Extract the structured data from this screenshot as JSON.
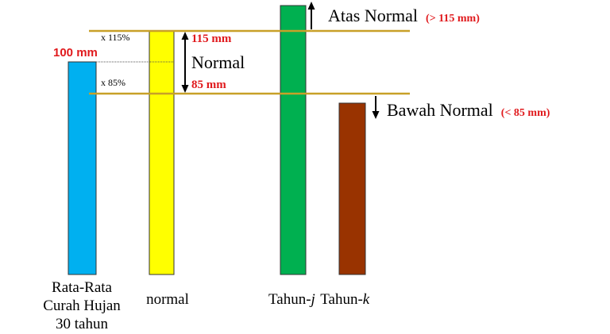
{
  "colors": {
    "blue_bar": "#00b0f0",
    "yellow_bar": "#ffff00",
    "green_bar": "#00b050",
    "brown_bar": "#993300",
    "threshold_line": "#c8a028",
    "red_text": "#e0191c",
    "black": "#000000"
  },
  "labels": {
    "avg_value": "100 mm",
    "mult_115": "x 115%",
    "mult_85": "x 85%",
    "upper_mm": "115 mm",
    "normal_title": "Normal",
    "lower_mm": "85 mm",
    "above_title": "Atas Normal",
    "above_range": "(> 115 mm)",
    "below_title": "Bawah Normal",
    "below_range": "(< 85 mm)"
  },
  "captions": {
    "avg_line1": "Rata-Rata",
    "avg_line2": "Curah Hujan",
    "avg_line3": "30 tahun",
    "normal": "normal",
    "year_j_prefix": "Tahun-",
    "year_j_var": "j",
    "year_k_prefix": "Tahun-",
    "year_k_var": "k"
  }
}
